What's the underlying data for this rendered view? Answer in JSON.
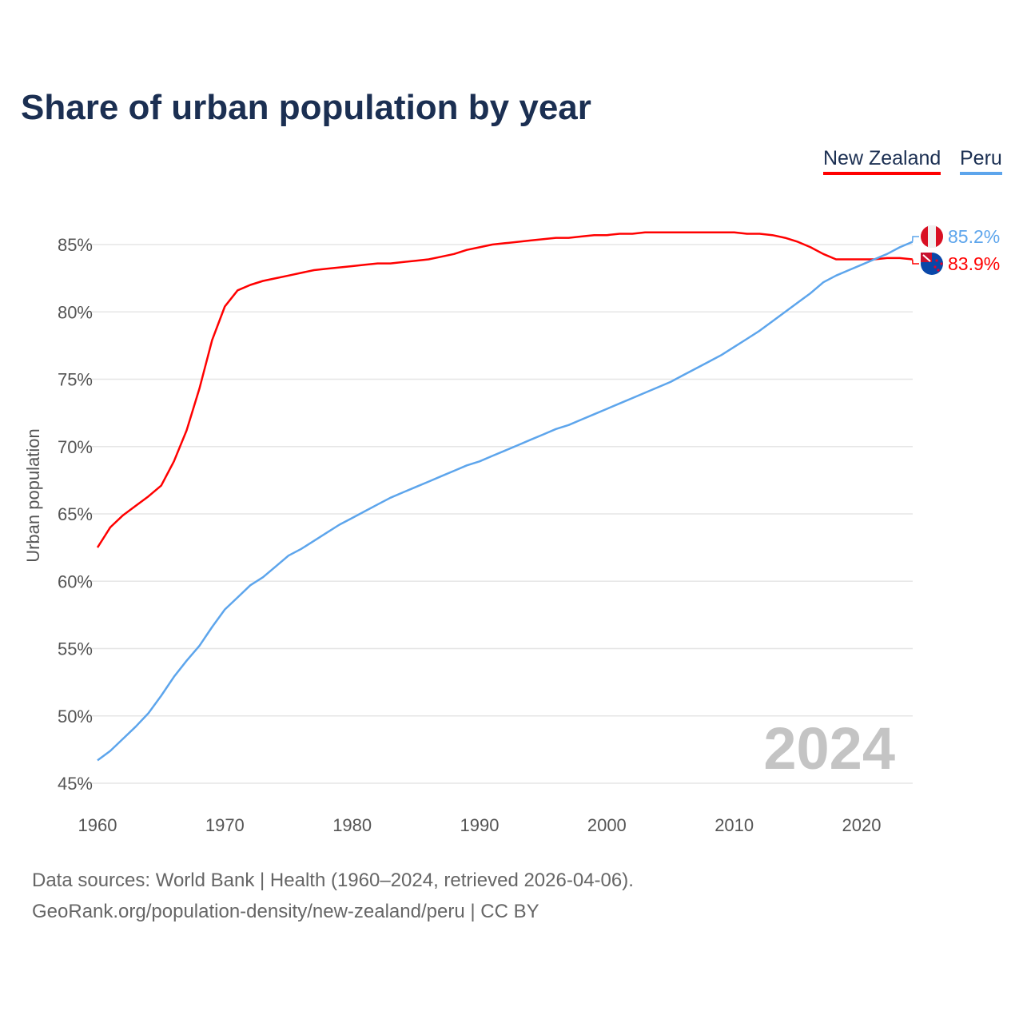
{
  "chart_data": {
    "type": "line",
    "title": "Share of urban population by year",
    "ylabel": "Urban population",
    "xlabel": "",
    "ylim": [
      45,
      85
    ],
    "xlim": [
      1960,
      2024
    ],
    "yticks": [
      "45%",
      "50%",
      "55%",
      "60%",
      "65%",
      "70%",
      "75%",
      "80%",
      "85%"
    ],
    "ytick_values": [
      45,
      50,
      55,
      60,
      65,
      70,
      75,
      80,
      85
    ],
    "xticks": [
      "1960",
      "1970",
      "1980",
      "1990",
      "2000",
      "2010",
      "2020"
    ],
    "xtick_values": [
      1960,
      1970,
      1980,
      1990,
      2000,
      2010,
      2020
    ],
    "grid": true,
    "legend": "top-right",
    "year_watermark": "2024",
    "x": [
      1960,
      1961,
      1962,
      1963,
      1964,
      1965,
      1966,
      1967,
      1968,
      1969,
      1970,
      1971,
      1972,
      1973,
      1974,
      1975,
      1976,
      1977,
      1978,
      1979,
      1980,
      1981,
      1982,
      1983,
      1984,
      1985,
      1986,
      1987,
      1988,
      1989,
      1990,
      1991,
      1992,
      1993,
      1994,
      1995,
      1996,
      1997,
      1998,
      1999,
      2000,
      2001,
      2002,
      2003,
      2004,
      2005,
      2006,
      2007,
      2008,
      2009,
      2010,
      2011,
      2012,
      2013,
      2014,
      2015,
      2016,
      2017,
      2018,
      2019,
      2020,
      2021,
      2022,
      2023,
      2024
    ],
    "series": [
      {
        "name": "New Zealand",
        "color": "#ff0000",
        "end_label": "83.9%",
        "values": [
          62.5,
          64.0,
          64.9,
          65.6,
          66.3,
          67.1,
          68.9,
          71.2,
          74.3,
          77.9,
          80.4,
          81.6,
          82.0,
          82.3,
          82.5,
          82.7,
          82.9,
          83.1,
          83.2,
          83.3,
          83.4,
          83.5,
          83.6,
          83.6,
          83.7,
          83.8,
          83.9,
          84.1,
          84.3,
          84.6,
          84.8,
          85.0,
          85.1,
          85.2,
          85.3,
          85.4,
          85.5,
          85.5,
          85.6,
          85.7,
          85.7,
          85.8,
          85.8,
          85.9,
          85.9,
          85.9,
          85.9,
          85.9,
          85.9,
          85.9,
          85.9,
          85.8,
          85.8,
          85.7,
          85.5,
          85.2,
          84.8,
          84.3,
          83.9,
          83.9,
          83.9,
          83.9,
          84.0,
          84.0,
          83.9
        ]
      },
      {
        "name": "Peru",
        "color": "#5da5ec",
        "end_label": "85.2%",
        "values": [
          46.7,
          47.4,
          48.3,
          49.2,
          50.2,
          51.5,
          52.9,
          54.1,
          55.2,
          56.6,
          57.9,
          58.8,
          59.7,
          60.3,
          61.1,
          61.9,
          62.4,
          63.0,
          63.6,
          64.2,
          64.7,
          65.2,
          65.7,
          66.2,
          66.6,
          67.0,
          67.4,
          67.8,
          68.2,
          68.6,
          68.9,
          69.3,
          69.7,
          70.1,
          70.5,
          70.9,
          71.3,
          71.6,
          72.0,
          72.4,
          72.8,
          73.2,
          73.6,
          74.0,
          74.4,
          74.8,
          75.3,
          75.8,
          76.3,
          76.8,
          77.4,
          78.0,
          78.6,
          79.3,
          80.0,
          80.7,
          81.4,
          82.2,
          82.7,
          83.1,
          83.5,
          83.9,
          84.3,
          84.8,
          85.2
        ]
      }
    ]
  },
  "footer": {
    "source": "Data sources: World Bank | Health (1960–2024, retrieved 2026-04-06).",
    "url": "GeoRank.org/population-density/new-zealand/peru | CC BY"
  }
}
